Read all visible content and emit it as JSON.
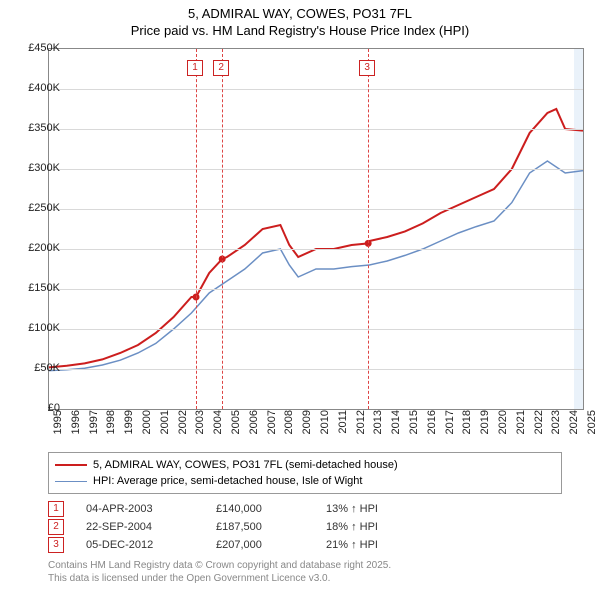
{
  "title": {
    "line1": "5, ADMIRAL WAY, COWES, PO31 7FL",
    "line2": "Price paid vs. HM Land Registry's House Price Index (HPI)"
  },
  "chart": {
    "type": "line",
    "x_years": [
      1995,
      1996,
      1997,
      1998,
      1999,
      2000,
      2001,
      2002,
      2003,
      2004,
      2005,
      2006,
      2007,
      2008,
      2009,
      2010,
      2011,
      2012,
      2013,
      2014,
      2015,
      2016,
      2017,
      2018,
      2019,
      2020,
      2021,
      2022,
      2023,
      2024,
      2025
    ],
    "y_min": 0,
    "y_max": 450000,
    "y_step": 50000,
    "y_tick_labels": [
      "£0",
      "£50K",
      "£100K",
      "£150K",
      "£200K",
      "£250K",
      "£300K",
      "£350K",
      "£400K",
      "£450K"
    ],
    "shade_from_year": 2024.5,
    "grid_color": "#d9d9d9",
    "series": [
      {
        "name": "subject",
        "label": "5, ADMIRAL WAY, COWES, PO31 7FL (semi-detached house)",
        "color": "#cc1e1e",
        "width": 2,
        "x": [
          1995,
          1996,
          1997,
          1998,
          1999,
          2000,
          2001,
          2002,
          2003,
          2003.26,
          2004,
          2004.73,
          2005,
          2006,
          2007,
          2008,
          2008.5,
          2009,
          2010,
          2011,
          2012,
          2012.93,
          2013,
          2014,
          2015,
          2016,
          2017,
          2018,
          2019,
          2020,
          2021,
          2022,
          2023,
          2023.5,
          2024,
          2025
        ],
        "y": [
          52000,
          54000,
          57000,
          62000,
          70000,
          80000,
          95000,
          115000,
          140000,
          140000,
          170000,
          187500,
          190000,
          205000,
          225000,
          230000,
          205000,
          190000,
          200000,
          200000,
          205000,
          207000,
          210000,
          215000,
          222000,
          232000,
          245000,
          255000,
          265000,
          275000,
          300000,
          345000,
          370000,
          375000,
          350000,
          348000
        ]
      },
      {
        "name": "hpi",
        "label": "HPI: Average price, semi-detached house, Isle of Wight",
        "color": "#6b8fc4",
        "width": 1.5,
        "x": [
          1995,
          1996,
          1997,
          1998,
          1999,
          2000,
          2001,
          2002,
          2003,
          2004,
          2005,
          2006,
          2007,
          2008,
          2008.5,
          2009,
          2010,
          2011,
          2012,
          2013,
          2014,
          2015,
          2016,
          2017,
          2018,
          2019,
          2020,
          2021,
          2022,
          2023,
          2024,
          2025
        ],
        "y": [
          48000,
          49000,
          51000,
          55000,
          61000,
          70000,
          82000,
          100000,
          120000,
          145000,
          160000,
          175000,
          195000,
          200000,
          180000,
          165000,
          175000,
          175000,
          178000,
          180000,
          185000,
          192000,
          200000,
          210000,
          220000,
          228000,
          235000,
          258000,
          295000,
          310000,
          295000,
          298000
        ]
      }
    ],
    "sale_points": [
      {
        "n": "1",
        "year": 2003.26,
        "price": 140000
      },
      {
        "n": "2",
        "year": 2004.73,
        "price": 187500
      },
      {
        "n": "3",
        "year": 2012.93,
        "price": 207000
      }
    ]
  },
  "legend": {
    "rows": [
      {
        "color": "#cc1e1e",
        "width": 2,
        "label": "5, ADMIRAL WAY, COWES, PO31 7FL (semi-detached house)"
      },
      {
        "color": "#6b8fc4",
        "width": 1.5,
        "label": "HPI: Average price, semi-detached house, Isle of Wight"
      }
    ]
  },
  "sales": [
    {
      "n": "1",
      "date": "04-APR-2003",
      "price": "£140,000",
      "delta": "13% ↑ HPI"
    },
    {
      "n": "2",
      "date": "22-SEP-2004",
      "price": "£187,500",
      "delta": "18% ↑ HPI"
    },
    {
      "n": "3",
      "date": "05-DEC-2012",
      "price": "£207,000",
      "delta": "21% ↑ HPI"
    }
  ],
  "footer": {
    "line1": "Contains HM Land Registry data © Crown copyright and database right 2025.",
    "line2": "This data is licensed under the Open Government Licence v3.0."
  }
}
